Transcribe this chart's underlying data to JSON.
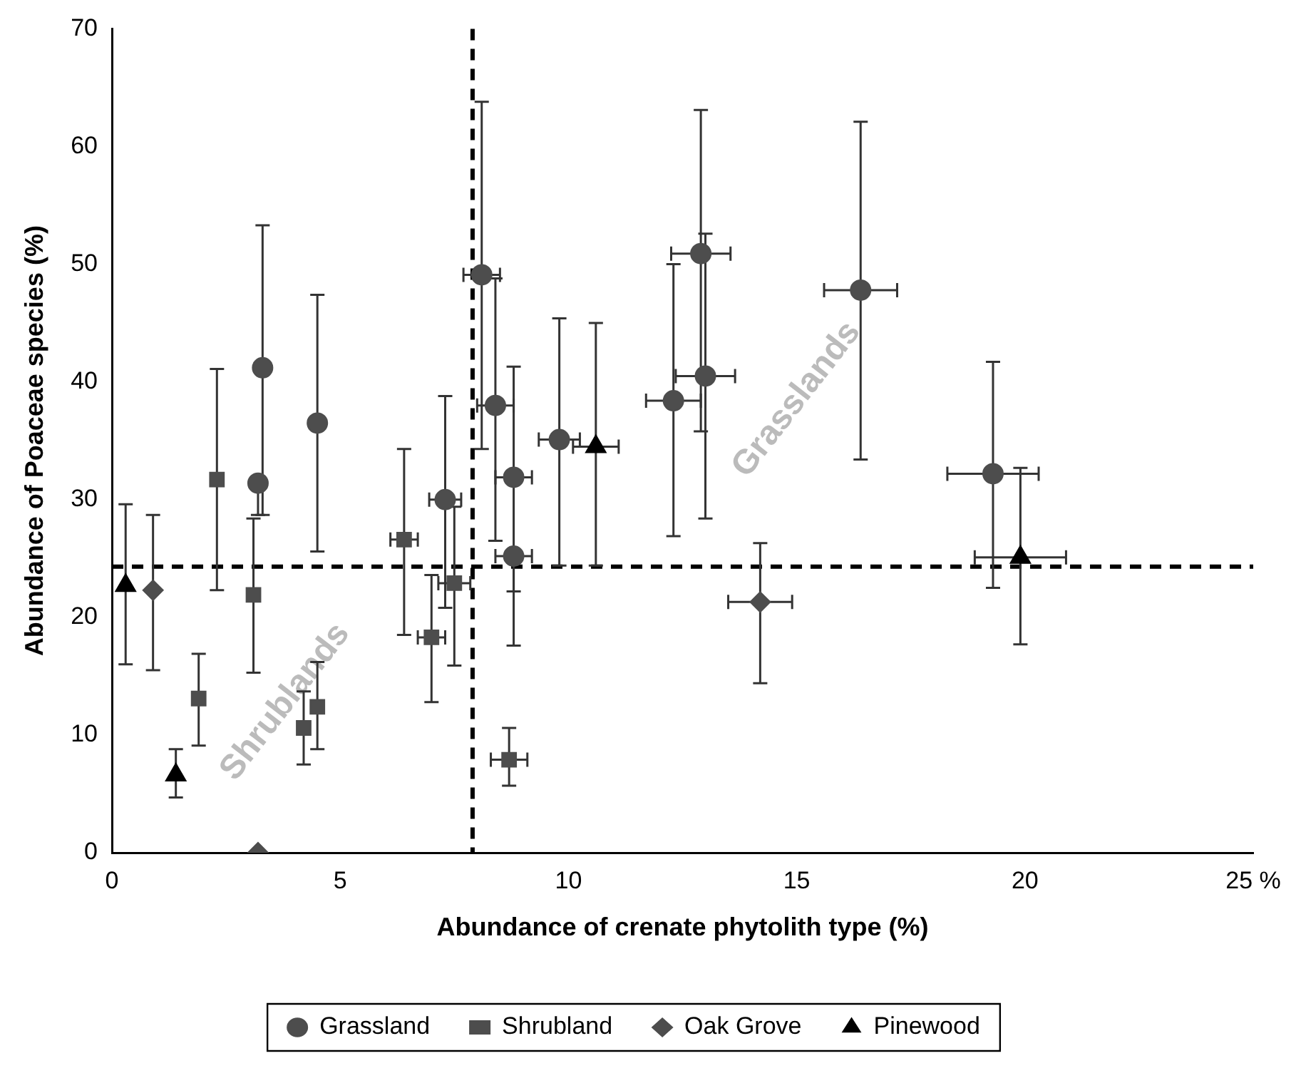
{
  "chart_data": {
    "type": "scatter",
    "xlabel": "Abundance of crenate phytolith type (%)",
    "ylabel": "Abundance of Poaceae species (%)",
    "xlim": [
      0,
      25
    ],
    "xticks": [
      0,
      5,
      10,
      15,
      20,
      {
        "value": 25,
        "label": "25 %"
      }
    ],
    "ylim": [
      0,
      70
    ],
    "yticks": [
      0,
      10,
      20,
      30,
      40,
      50,
      60,
      70
    ],
    "grid": false,
    "legend": "bottom",
    "ref_lines": [
      {
        "axis": "x",
        "value": 7.9,
        "line_style": "dashed",
        "color": "#000000"
      },
      {
        "axis": "y",
        "value": 24.3,
        "line_style": "dashed",
        "color": "#000000"
      }
    ],
    "annotations": [
      "Shrublands",
      "Grasslands"
    ],
    "series": [
      {
        "name": "Grassland",
        "color": "#4d4d4d",
        "marker": "circle",
        "x": [
          3.3,
          3.2,
          4.5,
          7.3,
          8.1,
          8.4,
          8.8,
          8.8,
          9.8,
          12.3,
          12.9,
          13.0,
          16.4,
          19.3
        ],
        "values": [
          41.2,
          31.4,
          36.5,
          30.0,
          49.1,
          38.0,
          31.9,
          25.2,
          35.1,
          38.4,
          50.9,
          40.5,
          47.8,
          32.2
        ],
        "errors": [
          [
            28.7,
            53.3
          ],
          [
            28.7,
            31.4
          ],
          [
            25.6,
            47.4
          ],
          [
            20.8,
            38.8
          ],
          [
            34.3,
            63.8
          ],
          [
            26.5,
            48.8
          ],
          [
            22.2,
            41.3
          ],
          [
            17.6,
            25.2
          ],
          [
            24.4,
            45.4
          ],
          [
            26.9,
            50.0
          ],
          [
            35.8,
            63.1
          ],
          [
            28.4,
            52.6
          ],
          [
            33.4,
            62.1
          ],
          [
            22.5,
            41.7
          ]
        ],
        "xerrors": [
          null,
          null,
          null,
          0.35,
          0.4,
          0.4,
          0.4,
          0.4,
          0.45,
          0.6,
          0.65,
          0.65,
          0.8,
          1.0
        ]
      },
      {
        "name": "Shrubland",
        "color": "#4d4d4d",
        "marker": "square",
        "x": [
          2.3,
          3.1,
          1.9,
          4.2,
          4.5,
          6.4,
          7.0,
          7.5,
          8.7
        ],
        "values": [
          31.7,
          21.9,
          13.1,
          10.6,
          12.4,
          26.6,
          18.3,
          22.9,
          7.9
        ],
        "errors": [
          [
            22.3,
            41.1
          ],
          [
            15.3,
            28.4
          ],
          [
            9.1,
            16.9
          ],
          [
            7.5,
            13.7
          ],
          [
            8.8,
            16.2
          ],
          [
            18.5,
            34.3
          ],
          [
            12.8,
            23.6
          ],
          [
            15.9,
            29.4
          ],
          [
            5.7,
            10.6
          ]
        ],
        "xerrors": [
          null,
          null,
          null,
          null,
          null,
          0.3,
          0.3,
          0.35,
          0.4
        ]
      },
      {
        "name": "Oak Grove",
        "color": "#4d4d4d",
        "marker": "diamond",
        "x": [
          0.9,
          3.2,
          14.2
        ],
        "values": [
          22.3,
          0,
          21.3
        ],
        "errors": [
          [
            15.5,
            28.7
          ],
          null,
          [
            14.4,
            26.3
          ]
        ],
        "xerrors": [
          null,
          null,
          0.7
        ]
      },
      {
        "name": "Pinewood",
        "color": "#000000",
        "marker": "triangle",
        "x": [
          0.3,
          1.4,
          10.6,
          19.9
        ],
        "values": [
          22.7,
          6.6,
          34.5,
          25.1
        ],
        "errors": [
          [
            16.0,
            29.6
          ],
          [
            4.7,
            8.8
          ],
          [
            24.4,
            45.0
          ],
          [
            17.7,
            32.7
          ]
        ],
        "xerrors": [
          null,
          null,
          0.5,
          1.0
        ]
      }
    ]
  }
}
